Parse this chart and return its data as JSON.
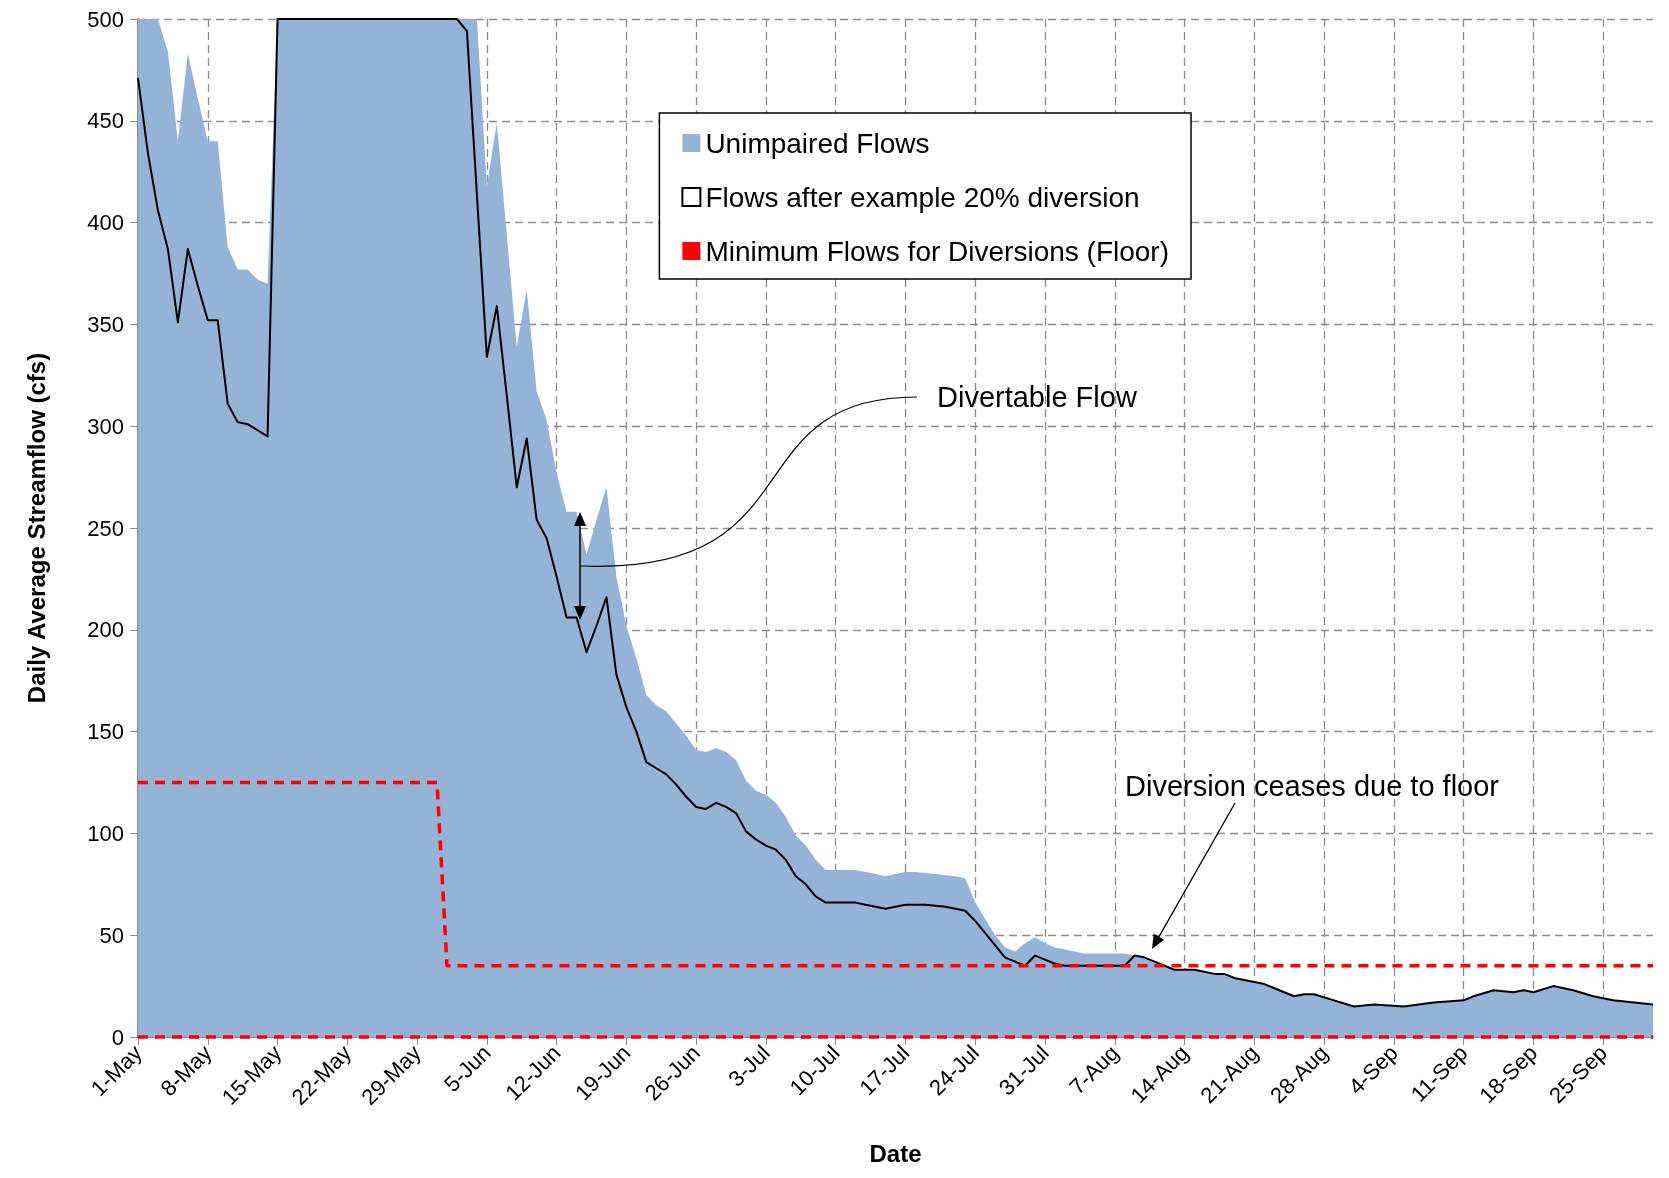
{
  "chart_data": {
    "type": "area",
    "xlabel": "Date",
    "ylabel": "Daily Average Streamflow (cfs)",
    "xlim": [
      "--05-01",
      "--09-30"
    ],
    "ylim": [
      0,
      500
    ],
    "xticks": [
      {
        "value": "--05-01",
        "label": "1-May"
      },
      {
        "value": "--05-08",
        "label": "8-May"
      },
      {
        "value": "--05-15",
        "label": "15-May"
      },
      {
        "value": "--05-22",
        "label": "22-May"
      },
      {
        "value": "--05-29",
        "label": "29-May"
      },
      {
        "value": "--06-05",
        "label": "5-Jun"
      },
      {
        "value": "--06-12",
        "label": "12-Jun"
      },
      {
        "value": "--06-19",
        "label": "19-Jun"
      },
      {
        "value": "--06-26",
        "label": "26-Jun"
      },
      {
        "value": "--07-03",
        "label": "3-Jul"
      },
      {
        "value": "--07-10",
        "label": "10-Jul"
      },
      {
        "value": "--07-17",
        "label": "17-Jul"
      },
      {
        "value": "--07-24",
        "label": "24-Jul"
      },
      {
        "value": "--07-31",
        "label": "31-Jul"
      },
      {
        "value": "--08-07",
        "label": "7-Aug"
      },
      {
        "value": "--08-14",
        "label": "14-Aug"
      },
      {
        "value": "--08-21",
        "label": "21-Aug"
      },
      {
        "value": "--08-28",
        "label": "28-Aug"
      },
      {
        "value": "--09-04",
        "label": "4-Sep"
      },
      {
        "value": "--09-11",
        "label": "11-Sep"
      },
      {
        "value": "--09-18",
        "label": "18-Sep"
      },
      {
        "value": "--09-25",
        "label": "25-Sep"
      }
    ],
    "yticks": [
      0,
      50,
      100,
      150,
      200,
      250,
      300,
      350,
      400,
      450,
      500
    ],
    "grid": true,
    "legend": "top right",
    "series": [
      {
        "name": "Unimpaired Flows",
        "color": "#95b3d7",
        "x": [
          "--05-01",
          "--05-02",
          "--05-03",
          "--05-04",
          "--05-05",
          "--05-06",
          "--05-07",
          "--05-08",
          "--05-09",
          "--05-10",
          "--05-11",
          "--05-12",
          "--05-13",
          "--05-14",
          "--05-15",
          "--06-04",
          "--06-05",
          "--06-06",
          "--06-07",
          "--06-08",
          "--06-09",
          "--06-10",
          "--06-11",
          "--06-12",
          "--06-13",
          "--06-14",
          "--06-15",
          "--06-16",
          "--06-17",
          "--06-18",
          "--06-19",
          "--06-20",
          "--06-21",
          "--06-22",
          "--06-23",
          "--06-24",
          "--06-25",
          "--06-26",
          "--06-27",
          "--06-28",
          "--06-29",
          "--06-30",
          "--07-01",
          "--07-02",
          "--07-03",
          "--07-04",
          "--07-05",
          "--07-06",
          "--07-07",
          "--07-08",
          "--07-09",
          "--07-10",
          "--07-12",
          "--07-14",
          "--07-15",
          "--07-16",
          "--07-17",
          "--07-18",
          "--07-20",
          "--07-22",
          "--07-23",
          "--07-24",
          "--07-25",
          "--07-26",
          "--07-27",
          "--07-28",
          "--07-29",
          "--07-30",
          "--07-31",
          "--08-01",
          "--08-02",
          "--08-04",
          "--08-08",
          "--08-09",
          "--08-10",
          "--08-11",
          "--08-12",
          "--08-13",
          "--08-15",
          "--08-17",
          "--08-18",
          "--08-19",
          "--08-21",
          "--08-22",
          "--08-24",
          "--08-25",
          "--08-26",
          "--08-27",
          "--08-29",
          "--08-31",
          "--09-02",
          "--09-05",
          "--09-08",
          "--09-11",
          "--09-12",
          "--09-14",
          "--09-16",
          "--09-17",
          "--09-18",
          "--09-20",
          "--09-22",
          "--09-24",
          "--09-26",
          "--09-30"
        ],
        "values": [
          500,
          500,
          500,
          484,
          440,
          483,
          461,
          440,
          440,
          388,
          377,
          377,
          372,
          370,
          500,
          500,
          418,
          449,
          394,
          339,
          367,
          317,
          303,
          277,
          258,
          258,
          237,
          254,
          270,
          226,
          202,
          186,
          168,
          163,
          160,
          154,
          148,
          141,
          140,
          142,
          140,
          136,
          126,
          121,
          119,
          115,
          108,
          99,
          94,
          87,
          82,
          82,
          82,
          80,
          79,
          80,
          81,
          81,
          80,
          79,
          78,
          66,
          58,
          50,
          44,
          42,
          46,
          49,
          46,
          44,
          43,
          41,
          41,
          40,
          39,
          37,
          35,
          33,
          33,
          31,
          31,
          29,
          27,
          26,
          22,
          20,
          21,
          21,
          18,
          15,
          16,
          15,
          17,
          18,
          20,
          23,
          22,
          23,
          22,
          25,
          23,
          20,
          18,
          16
        ]
      },
      {
        "name": "Flows after example 20% diversion",
        "type": "line",
        "color": "#000000",
        "x": [
          "--05-01",
          "--05-02",
          "--05-03",
          "--05-04",
          "--05-05",
          "--05-06",
          "--05-07",
          "--05-08",
          "--05-09",
          "--05-10",
          "--05-11",
          "--05-12",
          "--05-13",
          "--05-14",
          "--05-15",
          "--06-02",
          "--06-03",
          "--06-04",
          "--06-05",
          "--06-06",
          "--06-07",
          "--06-08",
          "--06-09",
          "--06-10",
          "--06-11",
          "--06-12",
          "--06-13",
          "--06-14",
          "--06-15",
          "--06-16",
          "--06-17",
          "--06-18",
          "--06-19",
          "--06-20",
          "--06-21",
          "--06-22",
          "--06-23",
          "--06-24",
          "--06-25",
          "--06-26",
          "--06-27",
          "--06-28",
          "--06-29",
          "--06-30",
          "--07-01",
          "--07-02",
          "--07-03",
          "--07-04",
          "--07-05",
          "--07-06",
          "--07-07",
          "--07-08",
          "--07-09",
          "--07-12",
          "--07-13",
          "--07-15",
          "--07-17",
          "--07-19",
          "--07-21",
          "--07-23",
          "--07-24",
          "--07-25",
          "--07-26",
          "--07-27",
          "--07-28",
          "--07-29",
          "--07-30",
          "--07-31",
          "--08-01",
          "--08-02",
          "--08-08",
          "--08-09",
          "--08-10",
          "--08-11",
          "--08-12",
          "--08-13",
          "--08-15",
          "--08-17",
          "--08-18",
          "--08-19",
          "--08-21",
          "--08-22",
          "--08-24",
          "--08-25",
          "--08-26",
          "--08-27",
          "--08-29",
          "--08-31",
          "--09-02",
          "--09-05",
          "--09-08",
          "--09-11",
          "--09-12",
          "--09-14",
          "--09-16",
          "--09-17",
          "--09-18",
          "--09-20",
          "--09-22",
          "--09-24",
          "--09-26",
          "--09-30"
        ],
        "values": [
          471,
          434,
          406,
          387,
          351,
          387,
          369,
          352,
          352,
          311,
          302,
          301,
          298,
          295,
          500,
          500,
          494,
          414,
          334,
          359,
          315,
          270,
          294,
          254,
          245,
          226,
          206,
          206,
          189,
          202,
          216,
          178,
          162,
          150,
          135,
          132,
          129,
          124,
          118,
          113,
          112,
          115,
          113,
          110,
          101,
          97,
          94,
          92,
          87,
          79,
          75,
          69,
          66,
          66,
          65,
          63,
          65,
          65,
          64,
          62,
          57,
          51,
          45,
          39,
          37,
          35,
          40,
          38,
          36,
          35,
          35,
          40,
          39,
          37,
          35,
          33,
          33,
          31,
          31,
          29,
          27,
          26,
          22,
          20,
          21,
          21,
          18,
          15,
          16,
          15,
          17,
          18,
          20,
          23,
          22,
          23,
          22,
          25,
          23,
          20,
          18,
          16
        ]
      },
      {
        "name": "Minimum Flows for Diversions (Floor)",
        "type": "line",
        "color": "#ff0000",
        "line_style": "dashed",
        "x": [
          "--05-01",
          "--05-31",
          "--06-01",
          "--09-30"
        ],
        "values": [
          125,
          125,
          35,
          35
        ]
      }
    ],
    "ref_lines": [
      {
        "axis": "y",
        "value": 0,
        "color": "#ff0000",
        "line_style": "dashed",
        "label": null
      }
    ],
    "annotations": [
      "Divertable Flow",
      "Diversion ceases due to floor"
    ]
  }
}
